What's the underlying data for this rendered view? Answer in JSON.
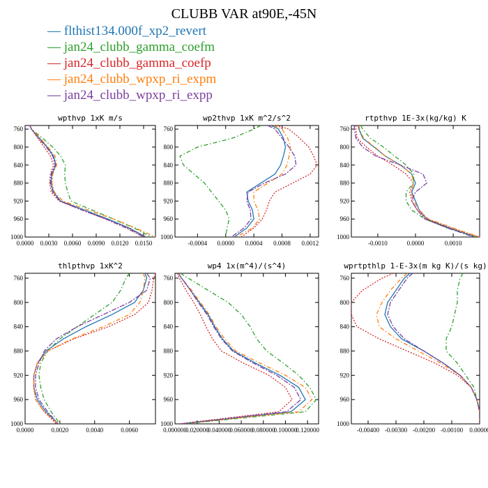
{
  "figure_title": "CLUBB VAR at90E,-45N",
  "legend": [
    {
      "name": "flthist134.000f_xp2_revert",
      "color": "#1f77b4",
      "dash": "solid"
    },
    {
      "name": "jan24_clubb_gamma_coefm",
      "color": "#2ca02c",
      "dash": "dashdot"
    },
    {
      "name": "jan24_clubb_gamma_coefp",
      "color": "#d62728",
      "dash": "dot"
    },
    {
      "name": "jan24_clubb_wpxp_ri_expm",
      "color": "#ff7f0e",
      "dash": "dashdot"
    },
    {
      "name": "jan24_clubb_wpxp_ri_expp",
      "color": "#7b3f9e",
      "dash": "dashdot2"
    }
  ],
  "chart_data": [
    {
      "type": "line",
      "title": "wpthvp  1xK m/s",
      "xlim": [
        0,
        0.0165
      ],
      "ylim": [
        1000,
        752
      ],
      "xticks": [
        0,
        0.003,
        0.006,
        0.009,
        0.012,
        0.015
      ],
      "xtick_labels": [
        "0.0000",
        "0.0030",
        "0.0060",
        "0.0090",
        "0.0120",
        "0.0150"
      ],
      "yticks": [
        760,
        800,
        840,
        880,
        920,
        960,
        1000
      ],
      "ytick_labels": [
        "760",
        "800",
        "840",
        "880",
        "920",
        "960",
        "1000"
      ],
      "y": [
        752,
        760,
        780,
        800,
        820,
        840,
        860,
        880,
        900,
        920,
        940,
        960,
        980,
        1000
      ],
      "series": [
        {
          "name": "flthist134.000f_xp2_revert",
          "values": [
            0.0006,
            0.0008,
            0.0018,
            0.0028,
            0.0036,
            0.0039,
            0.0034,
            0.0033,
            0.0036,
            0.0045,
            0.0075,
            0.0105,
            0.0132,
            0.0153
          ]
        },
        {
          "name": "jan24_clubb_gamma_coefm",
          "values": [
            0.0006,
            0.0008,
            0.0022,
            0.0035,
            0.0045,
            0.0051,
            0.005,
            0.0051,
            0.0054,
            0.0058,
            0.0085,
            0.0112,
            0.0138,
            0.016
          ]
        },
        {
          "name": "jan24_clubb_gamma_coefp",
          "values": [
            0.0006,
            0.0008,
            0.0016,
            0.0024,
            0.0032,
            0.0036,
            0.0032,
            0.0031,
            0.0033,
            0.0043,
            0.0072,
            0.0102,
            0.013,
            0.0152
          ]
        },
        {
          "name": "jan24_clubb_wpxp_ri_expm",
          "values": [
            0.0006,
            0.0008,
            0.0019,
            0.0029,
            0.0038,
            0.004,
            0.0035,
            0.0034,
            0.0037,
            0.0048,
            0.008,
            0.0112,
            0.014,
            0.0165
          ]
        },
        {
          "name": "jan24_clubb_wpxp_ri_expp",
          "values": [
            0.0006,
            0.0008,
            0.0017,
            0.0027,
            0.0035,
            0.0038,
            0.0033,
            0.0032,
            0.0035,
            0.0044,
            0.0072,
            0.0102,
            0.0128,
            0.015
          ]
        }
      ]
    },
    {
      "type": "line",
      "title": "wp2thvp  1xK m^2/s^2",
      "xlim": [
        -0.00072,
        0.00132
      ],
      "ylim": [
        1000,
        752
      ],
      "xticks": [
        -0.0004,
        0,
        0.0004,
        0.0008,
        0.0012
      ],
      "xtick_labels": [
        "-0.0004",
        "0.0000",
        "0.0004",
        "0.0008",
        "0.0012"
      ],
      "yticks": [
        760,
        800,
        840,
        880,
        920,
        960,
        1000
      ],
      "ytick_labels": [
        "760",
        "800",
        "840",
        "880",
        "920",
        "960",
        "1000"
      ],
      "y": [
        752,
        760,
        780,
        800,
        820,
        840,
        860,
        880,
        900,
        920,
        940,
        960,
        980,
        1000
      ],
      "series": [
        {
          "name": "flthist134.000f_xp2_revert",
          "values": [
            0.00065,
            0.00075,
            0.00082,
            0.00085,
            0.00082,
            0.00078,
            0.0007,
            0.0005,
            0.0003,
            0.00032,
            0.00038,
            0.0004,
            0.0003,
            0.00012
          ]
        },
        {
          "name": "jan24_clubb_gamma_coefm",
          "values": [
            0.0005,
            0.0004,
            0.0001,
            -0.0004,
            -0.00065,
            -0.0006,
            -0.00045,
            -0.0003,
            -0.0002,
            -0.0001,
            0.0,
            5e-05,
            2e-05,
            0.0
          ]
        },
        {
          "name": "jan24_clubb_gamma_coefp",
          "values": [
            0.00072,
            0.0009,
            0.00105,
            0.00118,
            0.00125,
            0.0013,
            0.0012,
            0.00095,
            0.0007,
            0.00062,
            0.00058,
            0.00052,
            0.0004,
            0.00022
          ]
        },
        {
          "name": "jan24_clubb_wpxp_ri_expm",
          "values": [
            0.00068,
            0.0008,
            0.00088,
            0.00092,
            0.0009,
            0.00087,
            0.0008,
            0.0006,
            0.0004,
            0.0004,
            0.00046,
            0.00048,
            0.00038,
            0.00015
          ]
        },
        {
          "name": "jan24_clubb_wpxp_ri_expp",
          "values": [
            0.0006,
            0.0007,
            0.0008,
            0.0009,
            0.00098,
            0.001,
            0.00085,
            0.00055,
            0.00032,
            0.0003,
            0.00035,
            0.00036,
            0.00026,
            8e-05
          ]
        }
      ]
    },
    {
      "type": "line",
      "title": "rtpthvp  1E-3x(kg/kg) K",
      "xlim": [
        -0.0017,
        0.0017
      ],
      "ylim": [
        1000,
        752
      ],
      "xticks": [
        -0.001,
        0,
        0.001
      ],
      "xtick_labels": [
        "-0.0010",
        "0.0000",
        "0.0010"
      ],
      "yticks": [
        760,
        800,
        840,
        880,
        920,
        960,
        1000
      ],
      "ytick_labels": [
        "760",
        "800",
        "840",
        "880",
        "920",
        "960",
        "1000"
      ],
      "y": [
        752,
        760,
        780,
        800,
        820,
        840,
        860,
        880,
        900,
        920,
        940,
        960,
        980,
        1000
      ],
      "series": [
        {
          "name": "flthist134.000f_xp2_revert",
          "values": [
            -0.00152,
            -0.0015,
            -0.0014,
            -0.0011,
            -0.0008,
            -0.0004,
            -0.0001,
            0.0,
            -0.0001,
            0.0,
            0.0001,
            0.0003,
            0.0009,
            0.0016
          ]
        },
        {
          "name": "jan24_clubb_gamma_coefm",
          "values": [
            -0.00145,
            -0.0014,
            -0.0012,
            -0.00085,
            -0.00055,
            -0.00025,
            -5e-05,
            -5e-05,
            -0.00025,
            -0.00025,
            -0.0001,
            0.00025,
            0.00085,
            0.0016
          ]
        },
        {
          "name": "jan24_clubb_gamma_coefp",
          "values": [
            -0.00158,
            -0.00158,
            -0.00155,
            -0.0013,
            -0.001,
            -0.0006,
            -0.00025,
            -5e-05,
            -0.00015,
            -0.0001,
            5e-05,
            0.0003,
            0.00095,
            0.00168
          ]
        },
        {
          "name": "jan24_clubb_wpxp_ri_expm",
          "values": [
            -0.0015,
            -0.00148,
            -0.00138,
            -0.00108,
            -0.0008,
            -0.0004,
            -0.0001,
            -5e-05,
            -0.00012,
            -5e-05,
            0.0001,
            0.00035,
            0.001,
            0.0017
          ]
        },
        {
          "name": "jan24_clubb_wpxp_ri_expp",
          "values": [
            -0.00162,
            -0.00162,
            -0.00158,
            -0.0014,
            -0.00105,
            -0.0004,
            0.0002,
            0.0003,
            0.0,
            -0.0001,
            5e-05,
            0.00025,
            0.00085,
            0.00155
          ]
        }
      ]
    },
    {
      "type": "line",
      "title": "thlpthvp  1xK^2",
      "xlim": [
        0,
        0.0075
      ],
      "ylim": [
        1000,
        752
      ],
      "xticks": [
        0,
        0.002,
        0.004,
        0.006
      ],
      "xtick_labels": [
        "0.0000",
        "0.0020",
        "0.0040",
        "0.0060"
      ],
      "yticks": [
        760,
        800,
        840,
        880,
        920,
        960,
        1000
      ],
      "ytick_labels": [
        "760",
        "800",
        "840",
        "880",
        "920",
        "960",
        "1000"
      ],
      "y": [
        752,
        760,
        780,
        800,
        820,
        840,
        860,
        880,
        900,
        920,
        940,
        960,
        980,
        1000
      ],
      "series": [
        {
          "name": "flthist134.000f_xp2_revert",
          "values": [
            0.0069,
            0.007,
            0.0068,
            0.0063,
            0.005,
            0.0035,
            0.0022,
            0.0012,
            0.0007,
            0.0005,
            0.0005,
            0.0007,
            0.0012,
            0.0019
          ]
        },
        {
          "name": "jan24_clubb_gamma_coefm",
          "values": [
            0.006,
            0.0058,
            0.0055,
            0.005,
            0.004,
            0.003,
            0.002,
            0.0013,
            0.0009,
            0.0008,
            0.0009,
            0.0011,
            0.0015,
            0.002
          ]
        },
        {
          "name": "jan24_clubb_gamma_coefp",
          "values": [
            0.0075,
            0.0074,
            0.0073,
            0.0071,
            0.0063,
            0.0048,
            0.0028,
            0.0013,
            0.0007,
            0.0005,
            0.0005,
            0.0006,
            0.0011,
            0.0018
          ]
        },
        {
          "name": "jan24_clubb_wpxp_ri_expm",
          "values": [
            0.0068,
            0.0069,
            0.0068,
            0.0066,
            0.006,
            0.0045,
            0.0027,
            0.0013,
            0.0007,
            0.0005,
            0.0005,
            0.0006,
            0.0011,
            0.0019
          ]
        },
        {
          "name": "jan24_clubb_wpxp_ri_expp",
          "values": [
            0.007,
            0.0072,
            0.007,
            0.006,
            0.0045,
            0.003,
            0.0018,
            0.0011,
            0.0008,
            0.0006,
            0.0006,
            0.0008,
            0.0013,
            0.0019
          ]
        }
      ]
    },
    {
      "type": "line",
      "title": "wp4  1x(m^4)/(s^4)",
      "xlim": [
        0,
        0.13
      ],
      "ylim": [
        1000,
        752
      ],
      "xticks": [
        0,
        0.02,
        0.04,
        0.06,
        0.08,
        0.1,
        0.12
      ],
      "xtick_labels": [
        "0.000000",
        "0.020000",
        "0.040000",
        "0.060000",
        "0.080000",
        "0.100000",
        "0.120000"
      ],
      "yticks": [
        760,
        800,
        840,
        880,
        920,
        960,
        1000
      ],
      "ytick_labels": [
        "760",
        "800",
        "840",
        "880",
        "920",
        "960",
        "1000"
      ],
      "y": [
        752,
        760,
        780,
        800,
        820,
        840,
        860,
        880,
        900,
        920,
        940,
        960,
        980,
        1000
      ],
      "series": [
        {
          "name": "flthist134.000f_xp2_revert",
          "values": [
            0.003,
            0.006,
            0.014,
            0.022,
            0.03,
            0.036,
            0.043,
            0.053,
            0.073,
            0.095,
            0.112,
            0.118,
            0.105,
            0.005
          ]
        },
        {
          "name": "jan24_clubb_gamma_coefm",
          "values": [
            0.005,
            0.012,
            0.03,
            0.048,
            0.06,
            0.068,
            0.074,
            0.083,
            0.098,
            0.112,
            0.122,
            0.128,
            0.118,
            0.008
          ]
        },
        {
          "name": "jan24_clubb_gamma_coefp",
          "values": [
            0.002,
            0.004,
            0.01,
            0.017,
            0.023,
            0.028,
            0.034,
            0.042,
            0.062,
            0.085,
            0.1,
            0.106,
            0.094,
            0.004
          ]
        },
        {
          "name": "jan24_clubb_wpxp_ri_expm",
          "values": [
            0.003,
            0.006,
            0.015,
            0.023,
            0.031,
            0.037,
            0.045,
            0.055,
            0.077,
            0.1,
            0.118,
            0.124,
            0.112,
            0.006
          ]
        },
        {
          "name": "jan24_clubb_wpxp_ri_expp",
          "values": [
            0.003,
            0.006,
            0.014,
            0.021,
            0.029,
            0.035,
            0.042,
            0.052,
            0.071,
            0.092,
            0.108,
            0.114,
            0.101,
            0.005
          ]
        }
      ]
    },
    {
      "type": "line",
      "title": "wprtpthlp  1-E-3x(m kg K)/(s kg)",
      "xlim": [
        -0.0046,
        0
      ],
      "ylim": [
        1000,
        752
      ],
      "xticks": [
        -0.004,
        -0.003,
        -0.002,
        -0.001,
        0
      ],
      "xtick_labels": [
        "-0.00400",
        "-0.00300",
        "-0.00200",
        "-0.00100",
        "0.00000"
      ],
      "yticks": [
        760,
        800,
        840,
        880,
        920,
        960,
        1000
      ],
      "ytick_labels": [
        "760",
        "800",
        "840",
        "880",
        "920",
        "960",
        "1000"
      ],
      "y": [
        752,
        760,
        780,
        800,
        820,
        840,
        860,
        880,
        900,
        920,
        940,
        960,
        980,
        1000
      ],
      "series": [
        {
          "name": "flthist134.000f_xp2_revert",
          "values": [
            -0.0025,
            -0.0027,
            -0.003,
            -0.0033,
            -0.0034,
            -0.0032,
            -0.0028,
            -0.002,
            -0.0013,
            -0.0007,
            -0.0003,
            -0.0001,
            0.0,
            0.0
          ]
        },
        {
          "name": "jan24_clubb_gamma_coefm",
          "values": [
            -0.0006,
            -0.0007,
            -0.0008,
            -0.0008,
            -0.0009,
            -0.001,
            -0.0012,
            -0.0012,
            -0.0008,
            -0.0005,
            -0.0002,
            -0.0001,
            0.0,
            0.0
          ]
        },
        {
          "name": "jan24_clubb_gamma_coefp",
          "values": [
            -0.0031,
            -0.0035,
            -0.0042,
            -0.0046,
            -0.0046,
            -0.0044,
            -0.0036,
            -0.0026,
            -0.0016,
            -0.0008,
            -0.0003,
            -0.0001,
            0.0,
            0.0
          ]
        },
        {
          "name": "jan24_clubb_wpxp_ri_expm",
          "values": [
            -0.0026,
            -0.0028,
            -0.0032,
            -0.0035,
            -0.0037,
            -0.0036,
            -0.003,
            -0.0022,
            -0.0014,
            -0.0007,
            -0.0003,
            -0.0001,
            0.0,
            0.0
          ]
        },
        {
          "name": "jan24_clubb_wpxp_ri_expp",
          "values": [
            -0.0024,
            -0.0026,
            -0.0029,
            -0.0032,
            -0.0033,
            -0.0031,
            -0.0027,
            -0.002,
            -0.0013,
            -0.0007,
            -0.0003,
            -0.0001,
            0.0,
            0.0
          ]
        }
      ]
    }
  ]
}
